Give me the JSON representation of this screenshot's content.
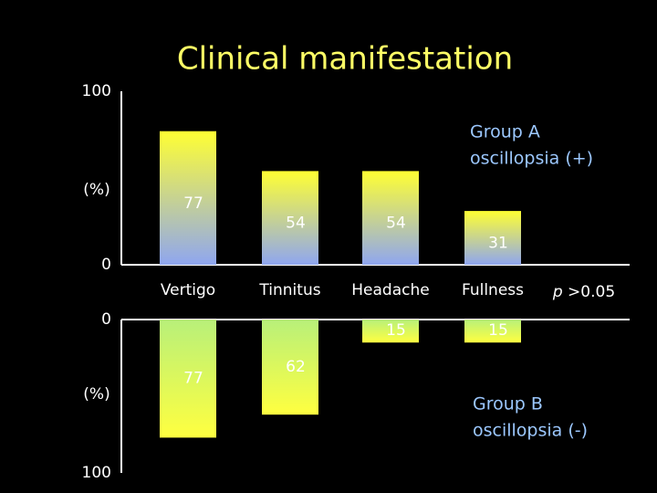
{
  "chart_data": [
    {
      "type": "bar",
      "title": "Clinical manifestation",
      "categories": [
        "Vertigo",
        "Tinnitus",
        "Headache",
        "Fullness"
      ],
      "values": [
        77,
        54,
        54,
        31
      ],
      "ylabel": "(%)",
      "ylim": [
        0,
        100
      ],
      "yticks": [
        0,
        100
      ],
      "inverted": false,
      "gradient": [
        "#ffff33",
        "#8fa6f0"
      ],
      "annotation": [
        "Group A",
        "oscillopsia (+)"
      ],
      "note": {
        "italic": "p",
        "text": ">0.05"
      }
    },
    {
      "type": "bar",
      "values": [
        77,
        62,
        15,
        15
      ],
      "ylabel": "(%)",
      "ylim": [
        0,
        100
      ],
      "yticks": [
        0,
        100
      ],
      "inverted": true,
      "gradient": [
        "#b8f07a",
        "#ffff40"
      ],
      "annotation": [
        "Group B",
        "oscillopsia (-)"
      ]
    }
  ]
}
